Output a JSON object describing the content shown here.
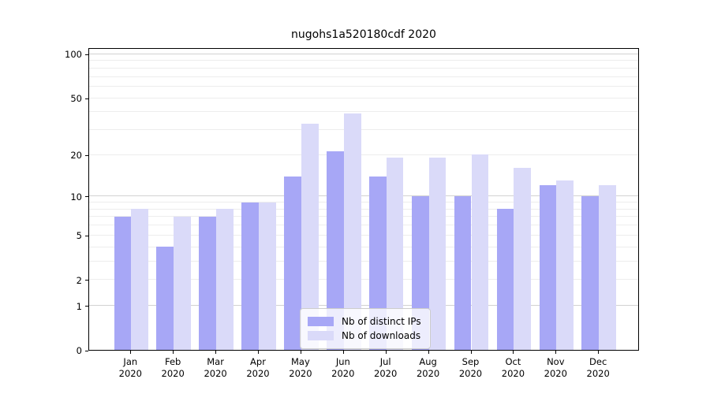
{
  "title": "nugohs1a520180cdf 2020",
  "chart_data": {
    "type": "bar",
    "title": "nugohs1a520180cdf 2020",
    "scale": "log1p",
    "categories": [
      "Jan",
      "Feb",
      "Mar",
      "Apr",
      "May",
      "Jun",
      "Jul",
      "Aug",
      "Sep",
      "Oct",
      "Nov",
      "Dec"
    ],
    "category_year": "2020",
    "series": [
      {
        "name": "Nb of distinct IPs",
        "color": "#a7a7f6",
        "values": [
          7,
          4,
          7,
          9,
          14,
          21,
          14,
          10,
          10,
          8,
          12,
          10
        ]
      },
      {
        "name": "Nb of downloads",
        "color": "#dadaf9",
        "values": [
          8,
          7,
          8,
          9,
          33,
          39,
          19,
          19,
          20,
          16,
          13,
          12
        ]
      }
    ],
    "yticks": [
      0,
      1,
      2,
      5,
      10,
      20,
      50,
      100
    ],
    "ylim": [
      0,
      111
    ],
    "major_gridlines": [
      1,
      10,
      100
    ],
    "minor_gridlines": [
      2,
      3,
      4,
      5,
      6,
      7,
      8,
      9,
      20,
      30,
      40,
      50,
      60,
      70,
      80,
      90
    ],
    "grid": "horizontal",
    "legend_position": "lower center",
    "xlabel": "",
    "ylabel": ""
  },
  "legend": {
    "items": [
      {
        "label": "Nb of distinct IPs",
        "color": "#a7a7f6"
      },
      {
        "label": "Nb of downloads",
        "color": "#dadaf9"
      }
    ]
  },
  "colors": {
    "ips_bar": "#a7a7f6",
    "downloads_bar": "#dadaf9",
    "major_grid": "#d2d2d2",
    "minor_grid": "#ededed",
    "spine": "#000000"
  }
}
